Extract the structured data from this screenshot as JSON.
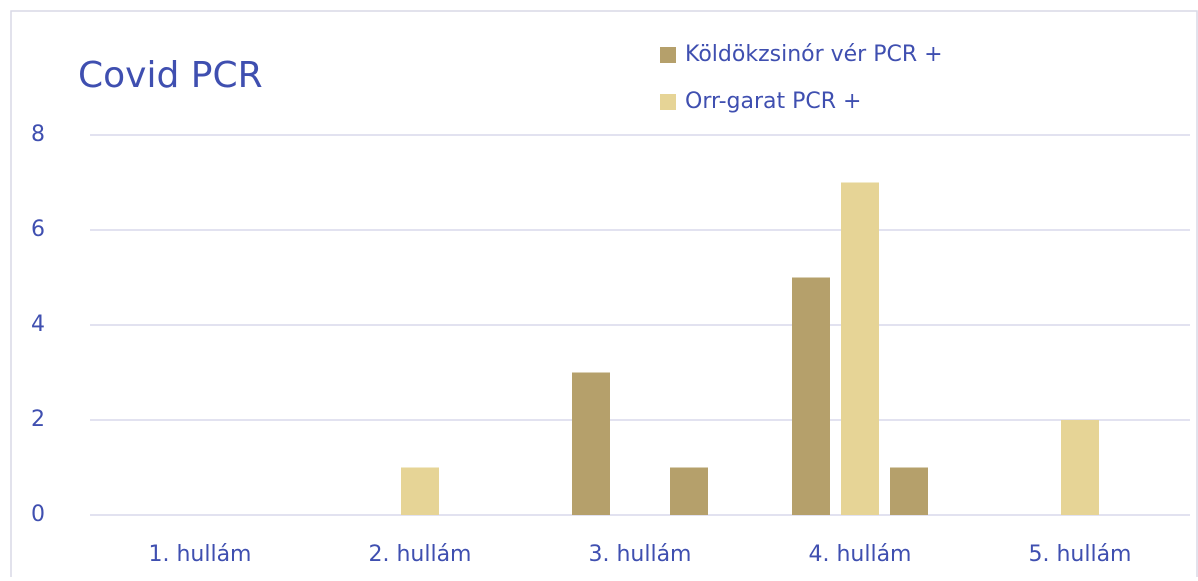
{
  "chart_data": {
    "type": "bar",
    "title": "Covid PCR",
    "categories": [
      "1. hullám",
      "2. hullám",
      "3. hullám",
      "4. hullám",
      "5. hullám"
    ],
    "series": [
      {
        "name": "Köldökzsinór vér PCR +",
        "color": "#b5a06b",
        "values": [
          0,
          0,
          3,
          5,
          0
        ]
      },
      {
        "name": "Orr-garat PCR +",
        "color": "#e6d496",
        "values": [
          0,
          1,
          0,
          7,
          2
        ]
      },
      {
        "color": "#b5a06b",
        "values": [
          0,
          0,
          1,
          1,
          0
        ]
      }
    ],
    "ylim": [
      0,
      8
    ],
    "yticks": [
      0,
      2,
      4,
      6,
      8
    ],
    "grid": true
  }
}
